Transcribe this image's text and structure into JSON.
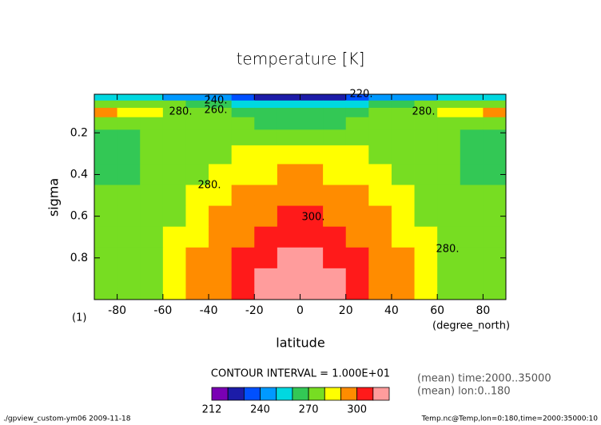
{
  "chart_data": {
    "type": "contour",
    "title": "temperature [K]",
    "xlabel": "latitude",
    "ylabel": "sigma",
    "xunit": "(degree_north)",
    "yunit": "(1)",
    "xlim": [
      -90,
      90
    ],
    "ylim": [
      0.015,
      1
    ],
    "invert_y": true,
    "xticks": [
      -80,
      -60,
      -40,
      -20,
      0,
      20,
      40,
      60,
      80
    ],
    "yticks": [
      0.2,
      0.4,
      0.6,
      0.8
    ],
    "x": [
      -85,
      -75,
      -65,
      -55,
      -45,
      -35,
      -25,
      -15,
      -5,
      5,
      15,
      25,
      35,
      45,
      55,
      65,
      75,
      85
    ],
    "y": [
      0.03,
      0.06,
      0.1,
      0.15,
      0.22,
      0.3,
      0.4,
      0.5,
      0.6,
      0.7,
      0.8,
      0.9,
      0.97
    ],
    "z": [
      [
        254,
        252,
        250,
        248,
        245,
        240,
        232,
        225,
        222,
        222,
        225,
        232,
        240,
        245,
        248,
        250,
        252,
        254
      ],
      [
        275,
        274,
        272,
        270,
        266,
        262,
        258,
        256,
        255,
        255,
        256,
        258,
        262,
        266,
        270,
        272,
        274,
        275
      ],
      [
        292,
        286,
        283,
        279,
        274,
        271,
        268,
        266,
        265,
        265,
        266,
        268,
        271,
        274,
        279,
        283,
        286,
        292
      ],
      [
        279,
        278,
        277,
        276,
        275,
        273,
        271,
        269,
        268,
        268,
        269,
        271,
        273,
        275,
        276,
        277,
        278,
        279
      ],
      [
        268,
        269,
        271,
        273,
        275,
        275,
        276,
        277,
        277,
        277,
        277,
        276,
        275,
        275,
        273,
        271,
        269,
        268
      ],
      [
        267,
        268,
        271,
        274,
        276,
        278,
        280,
        282,
        283,
        283,
        282,
        280,
        278,
        276,
        274,
        271,
        268,
        267
      ],
      [
        268,
        269,
        272,
        275,
        279,
        283,
        286,
        289,
        291,
        291,
        289,
        286,
        283,
        279,
        275,
        272,
        269,
        268
      ],
      [
        270,
        271,
        273,
        276,
        281,
        285,
        290,
        294,
        296,
        296,
        294,
        290,
        285,
        281,
        276,
        273,
        271,
        270
      ],
      [
        271,
        272,
        274,
        278,
        284,
        290,
        295,
        299,
        302,
        302,
        299,
        295,
        290,
        284,
        278,
        274,
        272,
        271
      ],
      [
        273,
        274,
        276,
        281,
        287,
        293,
        298,
        303,
        306,
        306,
        303,
        298,
        293,
        287,
        281,
        276,
        274,
        273
      ],
      [
        274,
        275,
        277,
        283,
        290,
        296,
        302,
        307,
        311,
        311,
        307,
        302,
        296,
        290,
        283,
        277,
        275,
        274
      ],
      [
        275,
        276,
        279,
        284,
        291,
        297,
        304,
        311,
        314,
        314,
        311,
        304,
        297,
        291,
        284,
        279,
        276,
        275
      ],
      [
        276,
        276,
        278,
        285,
        292,
        299,
        305,
        313,
        315,
        315,
        313,
        305,
        299,
        292,
        285,
        278,
        276,
        276
      ]
    ],
    "levels": [
      212,
      220,
      230,
      240,
      250,
      260,
      270,
      280,
      290,
      300,
      310,
      320
    ],
    "colors": [
      "#7a00b4",
      "#1c1ca8",
      "#0050ff",
      "#0099ff",
      "#00d8e0",
      "#33c855",
      "#77dd22",
      "#ffff00",
      "#ff8c00",
      "#ff1a1a",
      "#ff9c9c"
    ],
    "colorbar_ticks": [
      212,
      240,
      270,
      300
    ],
    "contour_labels": [
      "220.",
      "240.",
      "260.",
      "280.",
      "280.",
      "280.",
      "300.",
      "280."
    ],
    "contour_interval": "CONTOUR INTERVAL = 1.000E+01",
    "notes": [
      "(mean) time:2000..35000",
      "(mean) lon:0..180"
    ],
    "footer_left": "./gpview_custom-ym06   2009-11-18",
    "footer_right": "Temp.nc@Temp,lon=0:180,time=2000:35000:10"
  }
}
